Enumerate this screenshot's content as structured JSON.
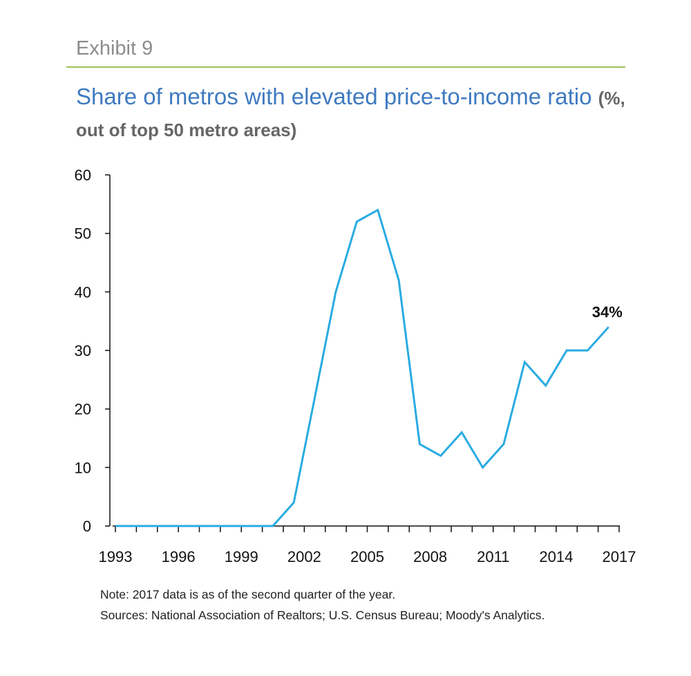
{
  "header": {
    "exhibit": "Exhibit 9"
  },
  "colors": {
    "line": "#29abe2",
    "title": "#3f7ac0",
    "rule": "#9bc25a"
  },
  "chart_data": {
    "type": "line",
    "title": "Share of metros with elevated price-to-income ratio",
    "subtitle": "(%, out of top 50 metro areas)",
    "xlabel": "",
    "ylabel": "",
    "ylim": [
      0,
      60
    ],
    "yticks": [
      0,
      10,
      20,
      30,
      40,
      50,
      60
    ],
    "xlim": [
      1993,
      2017
    ],
    "xtick_labels": [
      "1993",
      "1996",
      "1999",
      "2002",
      "2005",
      "2008",
      "2011",
      "2014",
      "2017"
    ],
    "grid": false,
    "series": [
      {
        "x": [
          1993,
          1994,
          1995,
          1996,
          1997,
          1998,
          1999,
          2000,
          2001,
          2002,
          2003,
          2004,
          2005,
          2006,
          2007,
          2008,
          2009,
          2010,
          2011,
          2012,
          2013,
          2014,
          2015,
          2016,
          2017
        ],
        "values": [
          0,
          0,
          0,
          0,
          0,
          0,
          0,
          0,
          0,
          4,
          22,
          40,
          52,
          54,
          42,
          14,
          12,
          16,
          10,
          14,
          28,
          24,
          30,
          30,
          34
        ]
      }
    ],
    "annotations": [
      {
        "label": "34%",
        "x": 2017,
        "y": 34
      }
    ]
  },
  "notes": {
    "note": "Note: 2017 data is as of the second quarter of the year.",
    "sources": "Sources: National Association of Realtors; U.S. Census Bureau; Moody's Analytics."
  }
}
